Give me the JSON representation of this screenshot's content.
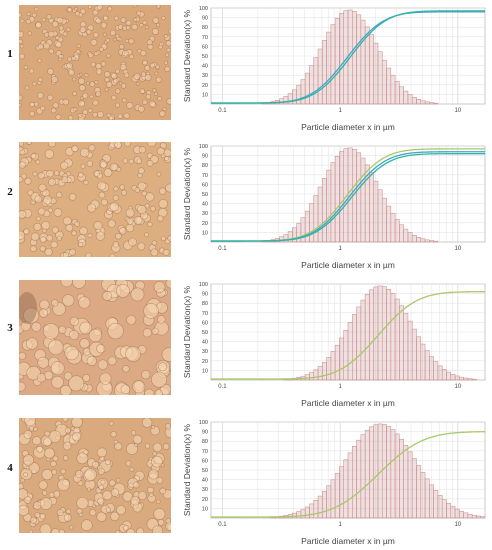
{
  "panels": [
    {
      "label": "1",
      "micrograph": {
        "base_color": "#d8a77a",
        "droplet_size": "small"
      },
      "chart": {
        "type": "bar",
        "ylabel": "Standard Deviation(x) %",
        "xlabel": "Particle diameter x in µm",
        "xscale": "log",
        "xlim": [
          0.08,
          17
        ],
        "ylim": [
          0,
          100
        ],
        "yticks": [
          10,
          20,
          30,
          40,
          50,
          60,
          70,
          80,
          90,
          100
        ],
        "xticks": [
          0.1,
          1,
          10
        ],
        "xtick_labels": [
          "0.1",
          "1",
          "10"
        ],
        "grid": true,
        "bar_color": "#c98f8f",
        "histogram": {
          "median_um": 1.2,
          "sigma_log10": 0.24,
          "peak": 98
        },
        "cumulative": [
          {
            "color": "#3fa7c6",
            "plateau": 96,
            "median_um": 1.15
          },
          {
            "color": "#33b3a5",
            "plateau": 97,
            "median_um": 1.22
          }
        ]
      }
    },
    {
      "label": "2",
      "micrograph": {
        "base_color": "#dcae80",
        "droplet_size": "medium"
      },
      "chart": {
        "type": "bar",
        "ylabel": "Standard Deviation(x) %",
        "xlabel": "Particle diameter x in µm",
        "xscale": "log",
        "xlim": [
          0.08,
          17
        ],
        "ylim": [
          0,
          100
        ],
        "yticks": [
          10,
          20,
          30,
          40,
          50,
          60,
          70,
          80,
          90,
          100
        ],
        "xticks": [
          0.1,
          1,
          10
        ],
        "xtick_labels": [
          "0.1",
          "1",
          "10"
        ],
        "grid": true,
        "bar_color": "#c98f8f",
        "histogram": {
          "median_um": 1.2,
          "sigma_log10": 0.24,
          "peak": 98
        },
        "cumulative": [
          {
            "color": "#a8c86a",
            "plateau": 97,
            "median_um": 1.15
          },
          {
            "color": "#3fa7c6",
            "plateau": 94,
            "median_um": 1.2
          },
          {
            "color": "#33b3a5",
            "plateau": 92,
            "median_um": 1.25
          }
        ]
      }
    },
    {
      "label": "3",
      "micrograph": {
        "base_color": "#dba984",
        "droplet_size": "large"
      },
      "chart": {
        "type": "bar",
        "ylabel": "Standard Deviation(x) %",
        "xlabel": "Particle diameter x in µm",
        "xscale": "log",
        "xlim": [
          0.08,
          17
        ],
        "ylim": [
          0,
          100
        ],
        "yticks": [
          10,
          20,
          30,
          40,
          50,
          60,
          70,
          80,
          90,
          100
        ],
        "xticks": [
          0.1,
          1,
          10
        ],
        "xtick_labels": [
          "0.1",
          "1",
          "10"
        ],
        "grid": true,
        "bar_color": "#c98f8f",
        "histogram": {
          "median_um": 2.2,
          "sigma_log10": 0.26,
          "peak": 98
        },
        "cumulative": [
          {
            "color": "#a8c86a",
            "plateau": 92,
            "median_um": 2.1
          }
        ]
      }
    },
    {
      "label": "4",
      "micrograph": {
        "base_color": "#d9aa7e",
        "droplet_size": "mixed"
      },
      "chart": {
        "type": "bar",
        "ylabel": "Standard Deviation(x) %",
        "xlabel": "Particle diameter x in µm",
        "xscale": "log",
        "xlim": [
          0.08,
          17
        ],
        "ylim": [
          0,
          100
        ],
        "yticks": [
          10,
          20,
          30,
          40,
          50,
          60,
          70,
          80,
          90,
          100
        ],
        "xticks": [
          0.1,
          1,
          10
        ],
        "xtick_labels": [
          "0.1",
          "1",
          "10"
        ],
        "grid": true,
        "bar_color": "#c98f8f",
        "histogram": {
          "median_um": 2.2,
          "sigma_log10": 0.3,
          "peak": 98
        },
        "cumulative": [
          {
            "color": "#a8c86a",
            "plateau": 90,
            "median_um": 2.1
          }
        ]
      }
    }
  ]
}
